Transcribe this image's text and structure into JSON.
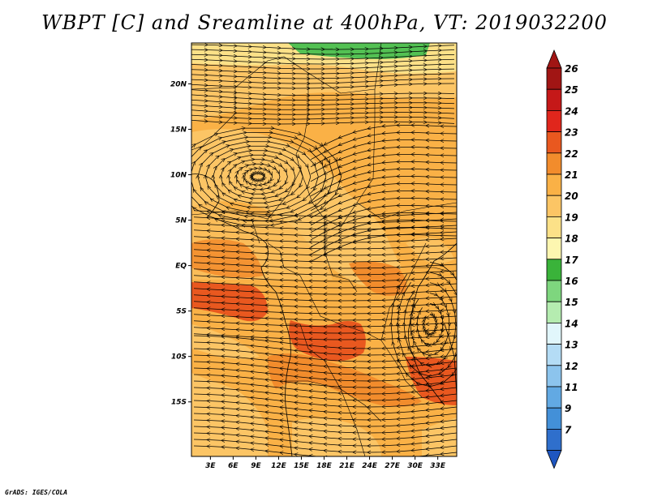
{
  "title": "WBPT [C] and Sreamline at 400hPa, VT: 2019032200",
  "footer": "GrADS: IGES/COLA",
  "map": {
    "lat_range": [
      -21,
      24.5
    ],
    "lon_range": [
      0.5,
      35.5
    ],
    "lat_ticks": [
      {
        "value": 20,
        "label": "20N"
      },
      {
        "value": 15,
        "label": "15N"
      },
      {
        "value": 10,
        "label": "10N"
      },
      {
        "value": 5,
        "label": "5N"
      },
      {
        "value": 0,
        "label": "EQ"
      },
      {
        "value": -5,
        "label": "5S"
      },
      {
        "value": -10,
        "label": "10S"
      },
      {
        "value": -15,
        "label": "15S"
      }
    ],
    "lon_ticks": [
      {
        "value": 3,
        "label": "3E"
      },
      {
        "value": 6,
        "label": "6E"
      },
      {
        "value": 9,
        "label": "9E"
      },
      {
        "value": 12,
        "label": "12E"
      },
      {
        "value": 15,
        "label": "15E"
      },
      {
        "value": 18,
        "label": "18E"
      },
      {
        "value": 21,
        "label": "21E"
      },
      {
        "value": 24,
        "label": "24E"
      },
      {
        "value": 27,
        "label": "27E"
      },
      {
        "value": 30,
        "label": "30E"
      },
      {
        "value": 33,
        "label": "33E"
      }
    ],
    "background_color": "#fab146",
    "colors": {
      "c19": "#fce188",
      "c20": "#fcc565",
      "c21": "#fab146",
      "c22": "#f28c2c",
      "c23": "#e9581f",
      "c18": "#53c153"
    }
  },
  "colorbar": {
    "levels": [
      {
        "label": "26",
        "color": "#a11514"
      },
      {
        "label": "25",
        "color": "#c51818"
      },
      {
        "label": "24",
        "color": "#e0261c"
      },
      {
        "label": "23",
        "color": "#e9581f"
      },
      {
        "label": "22",
        "color": "#f28c2c"
      },
      {
        "label": "21",
        "color": "#fab146"
      },
      {
        "label": "20",
        "color": "#fcc565"
      },
      {
        "label": "19",
        "color": "#fce188"
      },
      {
        "label": "18",
        "color": "#fdf6b0"
      },
      {
        "label": "17",
        "color": "#3ab33a"
      },
      {
        "label": "16",
        "color": "#7ed67e"
      },
      {
        "label": "15",
        "color": "#b5ecb0"
      },
      {
        "label": "14",
        "color": "#e1f6fb"
      },
      {
        "label": "13",
        "color": "#b4dcf5"
      },
      {
        "label": "12",
        "color": "#8cc4ed"
      },
      {
        "label": "11",
        "color": "#62a9e3"
      },
      {
        "label": "9",
        "color": "#4390d8"
      },
      {
        "label": "7",
        "color": "#2f6fcc"
      }
    ],
    "bottom_color": "#1e56c0"
  }
}
